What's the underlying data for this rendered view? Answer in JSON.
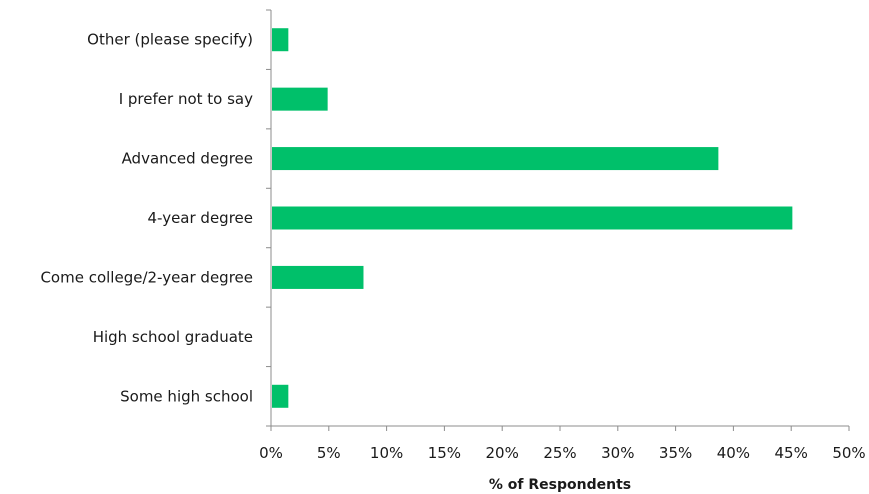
{
  "chart_data": {
    "type": "bar",
    "orientation": "horizontal",
    "categories": [
      "Other (please specify)",
      "I prefer not to say",
      "Advanced degree",
      "4-year degree",
      "Come college/2-year degree",
      "High school graduate",
      "Some high school"
    ],
    "values": [
      1.5,
      4.9,
      38.7,
      45.1,
      8.0,
      0,
      1.5
    ],
    "xlabel": "% of Respondents",
    "ylabel": "",
    "xlim": [
      0,
      50
    ],
    "xticks": [
      "0%",
      "5%",
      "10%",
      "15%",
      "20%",
      "25%",
      "30%",
      "35%",
      "40%",
      "45%",
      "50%"
    ],
    "grid": false,
    "bar_color": "#00c06a"
  }
}
